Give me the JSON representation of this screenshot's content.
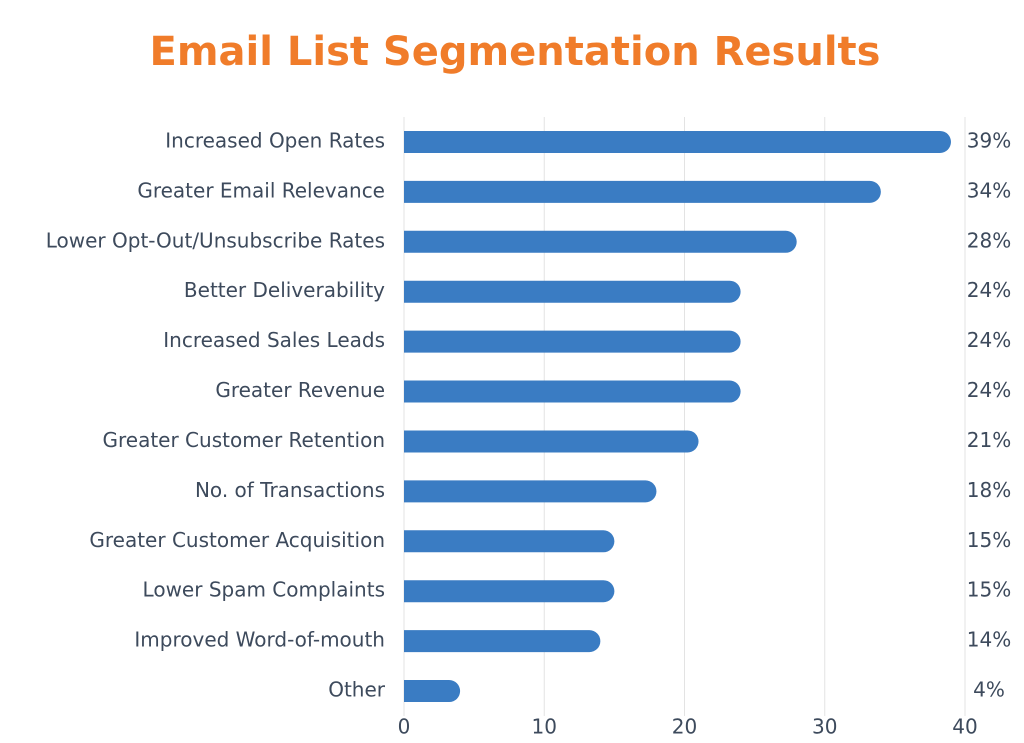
{
  "chart_data": {
    "type": "bar",
    "orientation": "horizontal",
    "title": "Email List Segmentation Results",
    "categories": [
      "Increased Open Rates",
      "Greater Email Relevance",
      "Lower Opt-Out/Unsubscribe Rates",
      "Better Deliverability",
      "Increased Sales Leads",
      "Greater Revenue",
      "Greater Customer Retention",
      "No. of Transactions",
      "Greater Customer Acquisition",
      "Lower Spam Complaints",
      "Improved Word-of-mouth",
      "Other"
    ],
    "values": [
      39,
      34,
      28,
      24,
      24,
      24,
      21,
      18,
      15,
      15,
      14,
      4
    ],
    "value_labels": [
      "39%",
      "34%",
      "28%",
      "24%",
      "24%",
      "24%",
      "21%",
      "18%",
      "15%",
      "15%",
      "14%",
      "4%"
    ],
    "color": "#3a7cc3",
    "xlim": [
      0,
      40
    ],
    "xticks": [
      0,
      10,
      20,
      30,
      40
    ],
    "grid": true
  }
}
